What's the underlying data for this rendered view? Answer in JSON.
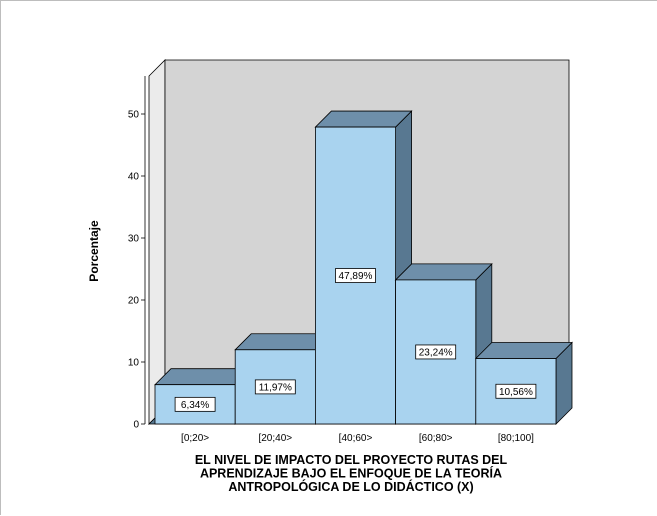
{
  "chart_data": {
    "type": "bar",
    "title": "",
    "categories": [
      "[0;20>",
      "[20;40>",
      "[40;60>",
      "[60;80>",
      "[80;100]"
    ],
    "values": [
      6.34,
      11.97,
      47.89,
      23.24,
      10.56
    ],
    "data_labels": [
      "6,34%",
      "11,97%",
      "47,89%",
      "23,24%",
      "10,56%"
    ],
    "ylabel": "Porcentaje",
    "xlabel_lines": [
      "EL NIVEL DE IMPACTO DEL PROYECTO RUTAS DEL",
      "APRENDIZAJE BAJO EL ENFOQUE DE LA TEORÍA",
      "ANTROPOLÓGICA DE LO DIDÁCTICO (X)"
    ],
    "ylim": [
      0,
      50
    ],
    "yticks": [
      0,
      10,
      20,
      30,
      40,
      50
    ],
    "grid": false,
    "legend": "none",
    "colors": {
      "bar_front": "#a9d3ef",
      "bar_top": "#6e8faa",
      "bar_side": "#587891",
      "back_wall": "#d4d4d4",
      "floor": "#587891",
      "left_wall": "#ebebeb"
    }
  }
}
